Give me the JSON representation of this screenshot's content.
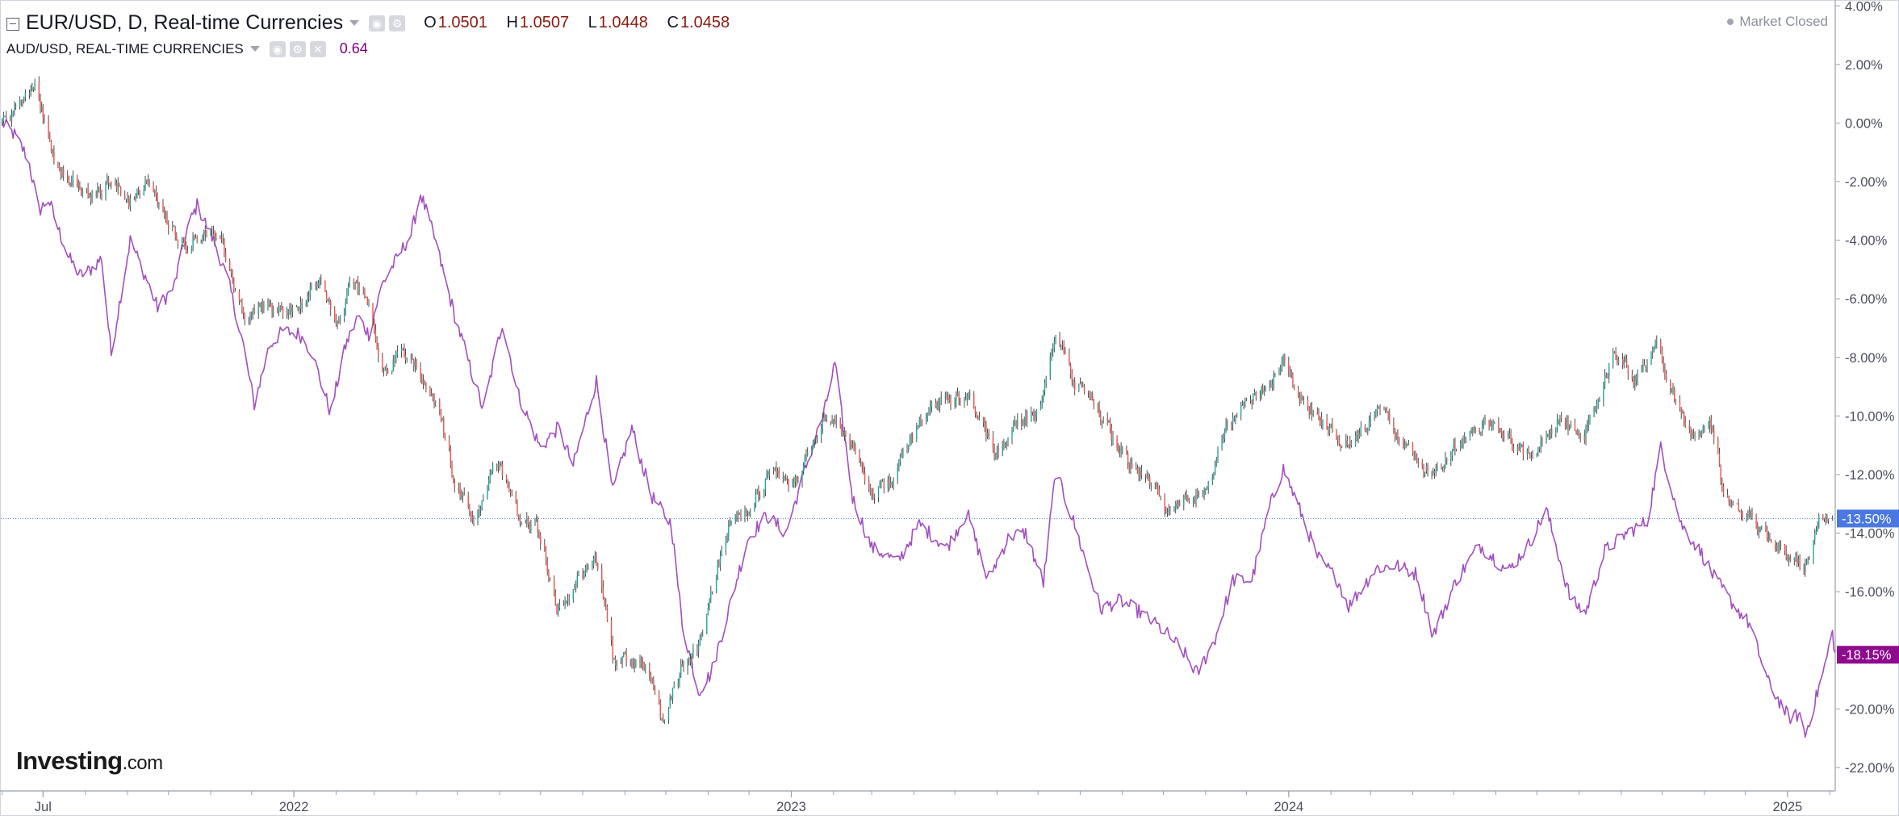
{
  "legend": {
    "main_symbol": "EUR/USD, D, Real-time Currencies",
    "ohlc": [
      {
        "key": "O",
        "value": "1.0501"
      },
      {
        "key": "H",
        "value": "1.0507"
      },
      {
        "key": "L",
        "value": "1.0448"
      },
      {
        "key": "C",
        "value": "1.0458"
      }
    ],
    "compare_symbol": "AUD/USD, REAL-TIME CURRENCIES",
    "compare_value": "0.64"
  },
  "status": {
    "market": "Market Closed"
  },
  "branding": {
    "logo_main": "Investing",
    "logo_suffix": ".com"
  },
  "chart_data": {
    "type": "line",
    "title": "EUR/USD, D, Real-time Currencies",
    "y_unit": "% change",
    "ylim": [
      -22.8,
      4.2
    ],
    "y_ticks": [
      "4.00%",
      "2.00%",
      "0.00%",
      "-2.00%",
      "-4.00%",
      "-6.00%",
      "-8.00%",
      "-10.00%",
      "-12.00%",
      "-14.00%",
      "-16.00%",
      "-18.00%",
      "-20.00%",
      "-22.00%"
    ],
    "x_labels": [
      "Jul",
      "2022",
      "2023",
      "2024",
      "2025"
    ],
    "xlim": [
      "2021-05-31",
      "2025-02-05"
    ],
    "grid": false,
    "reference_line": {
      "value": -13.5,
      "label": "-13.50%",
      "color": "#4a78e0"
    },
    "series": [
      {
        "name": "EUR/USD",
        "style": "candlestick",
        "up_color": "#26a69a",
        "down_color": "#ef5350",
        "last_label": "-13.50%",
        "label_color": "#4a78e0",
        "points": [
          [
            "2021-06-01",
            0.0
          ],
          [
            "2021-06-15",
            0.8
          ],
          [
            "2021-06-25",
            1.3
          ],
          [
            "2021-07-08",
            -1.2
          ],
          [
            "2021-07-22",
            -2.0
          ],
          [
            "2021-08-05",
            -2.6
          ],
          [
            "2021-08-20",
            -1.8
          ],
          [
            "2021-09-01",
            -2.8
          ],
          [
            "2021-09-15",
            -2.0
          ],
          [
            "2021-09-29",
            -3.4
          ],
          [
            "2021-10-14",
            -4.2
          ],
          [
            "2021-10-28",
            -3.6
          ],
          [
            "2021-11-10",
            -4.4
          ],
          [
            "2021-11-24",
            -6.6
          ],
          [
            "2021-12-08",
            -6.2
          ],
          [
            "2021-12-22",
            -6.5
          ],
          [
            "2022-01-05",
            -6.2
          ],
          [
            "2022-01-19",
            -5.4
          ],
          [
            "2022-02-02",
            -7.0
          ],
          [
            "2022-02-10",
            -5.3
          ],
          [
            "2022-02-24",
            -6.2
          ],
          [
            "2022-03-07",
            -8.5
          ],
          [
            "2022-03-21",
            -7.8
          ],
          [
            "2022-04-04",
            -8.6
          ],
          [
            "2022-04-18",
            -10.0
          ],
          [
            "2022-04-28",
            -12.3
          ],
          [
            "2022-05-12",
            -13.5
          ],
          [
            "2022-05-30",
            -11.5
          ],
          [
            "2022-06-14",
            -13.4
          ],
          [
            "2022-06-28",
            -13.8
          ],
          [
            "2022-07-12",
            -16.8
          ],
          [
            "2022-07-26",
            -15.8
          ],
          [
            "2022-08-10",
            -14.6
          ],
          [
            "2022-08-23",
            -18.4
          ],
          [
            "2022-09-06",
            -18.3
          ],
          [
            "2022-09-20",
            -18.9
          ],
          [
            "2022-09-27",
            -20.5
          ],
          [
            "2022-10-11",
            -18.6
          ],
          [
            "2022-10-25",
            -17.8
          ],
          [
            "2022-11-04",
            -15.6
          ],
          [
            "2022-11-15",
            -13.8
          ],
          [
            "2022-12-01",
            -13.2
          ],
          [
            "2022-12-15",
            -11.9
          ],
          [
            "2023-01-02",
            -12.5
          ],
          [
            "2023-01-16",
            -10.8
          ],
          [
            "2023-01-26",
            -9.8
          ],
          [
            "2023-02-15",
            -11.3
          ],
          [
            "2023-03-01",
            -12.6
          ],
          [
            "2023-03-15",
            -12.2
          ],
          [
            "2023-03-30",
            -10.6
          ],
          [
            "2023-04-14",
            -9.8
          ],
          [
            "2023-04-26",
            -9.4
          ],
          [
            "2023-05-10",
            -9.2
          ],
          [
            "2023-05-30",
            -11.3
          ],
          [
            "2023-06-14",
            -10.2
          ],
          [
            "2023-06-30",
            -9.9
          ],
          [
            "2023-07-13",
            -7.1
          ],
          [
            "2023-07-27",
            -9.0
          ],
          [
            "2023-08-10",
            -9.4
          ],
          [
            "2023-08-24",
            -10.8
          ],
          [
            "2023-09-07",
            -11.6
          ],
          [
            "2023-09-21",
            -12.3
          ],
          [
            "2023-10-03",
            -13.4
          ],
          [
            "2023-10-17",
            -12.7
          ],
          [
            "2023-11-01",
            -12.5
          ],
          [
            "2023-11-15",
            -10.4
          ],
          [
            "2023-11-29",
            -9.6
          ],
          [
            "2023-12-14",
            -9.0
          ],
          [
            "2023-12-28",
            -8.2
          ],
          [
            "2024-01-10",
            -9.5
          ],
          [
            "2024-01-24",
            -10.2
          ],
          [
            "2024-02-14",
            -11.0
          ],
          [
            "2024-03-07",
            -9.8
          ],
          [
            "2024-03-28",
            -11.2
          ],
          [
            "2024-04-16",
            -12.1
          ],
          [
            "2024-05-03",
            -10.9
          ],
          [
            "2024-05-30",
            -10.3
          ],
          [
            "2024-06-26",
            -11.5
          ],
          [
            "2024-07-17",
            -10.2
          ],
          [
            "2024-08-05",
            -10.6
          ],
          [
            "2024-08-26",
            -7.8
          ],
          [
            "2024-09-10",
            -8.8
          ],
          [
            "2024-09-26",
            -7.6
          ],
          [
            "2024-10-10",
            -9.5
          ],
          [
            "2024-10-24",
            -10.9
          ],
          [
            "2024-11-05",
            -10.0
          ],
          [
            "2024-11-13",
            -12.7
          ],
          [
            "2024-11-22",
            -13.3
          ],
          [
            "2024-12-04",
            -13.4
          ],
          [
            "2024-12-18",
            -14.4
          ],
          [
            "2025-01-02",
            -14.7
          ],
          [
            "2025-01-13",
            -15.2
          ],
          [
            "2025-01-24",
            -13.3
          ],
          [
            "2025-02-03",
            -13.5
          ]
        ]
      },
      {
        "name": "AUD/USD",
        "style": "line",
        "color": "#a14fbf",
        "last_label": "-18.15%",
        "label_color": "#8e0b8e",
        "points": [
          [
            "2021-06-01",
            0.0
          ],
          [
            "2021-06-10",
            -0.4
          ],
          [
            "2021-06-20",
            -1.2
          ],
          [
            "2021-06-28",
            -3.0
          ],
          [
            "2021-07-05",
            -2.6
          ],
          [
            "2021-07-12",
            -3.6
          ],
          [
            "2021-07-20",
            -4.6
          ],
          [
            "2021-07-28",
            -5.2
          ],
          [
            "2021-08-05",
            -5.0
          ],
          [
            "2021-08-13",
            -4.6
          ],
          [
            "2021-08-20",
            -7.9
          ],
          [
            "2021-08-28",
            -5.6
          ],
          [
            "2021-09-03",
            -4.0
          ],
          [
            "2021-09-13",
            -5.1
          ],
          [
            "2021-09-23",
            -6.3
          ],
          [
            "2021-10-05",
            -5.6
          ],
          [
            "2021-10-15",
            -3.6
          ],
          [
            "2021-10-22",
            -2.8
          ],
          [
            "2021-11-05",
            -4.2
          ],
          [
            "2021-11-15",
            -5.6
          ],
          [
            "2021-11-25",
            -7.6
          ],
          [
            "2021-12-03",
            -9.6
          ],
          [
            "2021-12-14",
            -7.6
          ],
          [
            "2021-12-24",
            -7.1
          ],
          [
            "2022-01-05",
            -7.2
          ],
          [
            "2022-01-14",
            -7.8
          ],
          [
            "2022-01-28",
            -9.9
          ],
          [
            "2022-02-08",
            -7.6
          ],
          [
            "2022-02-17",
            -6.6
          ],
          [
            "2022-02-25",
            -7.2
          ],
          [
            "2022-03-07",
            -5.5
          ],
          [
            "2022-03-18",
            -4.6
          ],
          [
            "2022-03-28",
            -3.8
          ],
          [
            "2022-04-04",
            -2.4
          ],
          [
            "2022-04-14",
            -3.9
          ],
          [
            "2022-04-28",
            -6.4
          ],
          [
            "2022-05-12",
            -8.6
          ],
          [
            "2022-05-20",
            -9.8
          ],
          [
            "2022-06-03",
            -6.8
          ],
          [
            "2022-06-15",
            -9.3
          ],
          [
            "2022-07-01",
            -11.1
          ],
          [
            "2022-07-14",
            -10.4
          ],
          [
            "2022-07-25",
            -11.7
          ],
          [
            "2022-08-11",
            -8.8
          ],
          [
            "2022-08-23",
            -12.6
          ],
          [
            "2022-09-06",
            -10.4
          ],
          [
            "2022-09-20",
            -12.7
          ],
          [
            "2022-10-05",
            -13.7
          ],
          [
            "2022-10-13",
            -17.1
          ],
          [
            "2022-10-25",
            -19.4
          ],
          [
            "2022-11-03",
            -18.8
          ],
          [
            "2022-11-15",
            -16.8
          ],
          [
            "2022-11-30",
            -14.2
          ],
          [
            "2022-12-14",
            -13.4
          ],
          [
            "2022-12-28",
            -14.0
          ],
          [
            "2023-01-12",
            -11.7
          ],
          [
            "2023-01-25",
            -9.9
          ],
          [
            "2023-02-02",
            -8.2
          ],
          [
            "2023-02-15",
            -12.8
          ],
          [
            "2023-03-01",
            -14.5
          ],
          [
            "2023-03-10",
            -14.7
          ],
          [
            "2023-03-20",
            -15.0
          ],
          [
            "2023-04-05",
            -13.7
          ],
          [
            "2023-04-25",
            -14.5
          ],
          [
            "2023-05-10",
            -13.3
          ],
          [
            "2023-05-25",
            -15.6
          ],
          [
            "2023-06-10",
            -14.1
          ],
          [
            "2023-06-22",
            -14.0
          ],
          [
            "2023-07-05",
            -15.7
          ],
          [
            "2023-07-14",
            -11.9
          ],
          [
            "2023-07-27",
            -13.6
          ],
          [
            "2023-08-16",
            -16.6
          ],
          [
            "2023-08-30",
            -16.3
          ],
          [
            "2023-09-14",
            -16.7
          ],
          [
            "2023-10-03",
            -17.4
          ],
          [
            "2023-10-15",
            -18.0
          ],
          [
            "2023-10-26",
            -18.8
          ],
          [
            "2023-11-08",
            -17.6
          ],
          [
            "2023-11-21",
            -15.6
          ],
          [
            "2023-12-05",
            -15.6
          ],
          [
            "2023-12-18",
            -13.1
          ],
          [
            "2023-12-28",
            -11.8
          ],
          [
            "2024-01-10",
            -13.3
          ],
          [
            "2024-01-22",
            -14.8
          ],
          [
            "2024-02-06",
            -15.6
          ],
          [
            "2024-02-14",
            -16.5
          ],
          [
            "2024-03-05",
            -15.2
          ],
          [
            "2024-03-20",
            -15.1
          ],
          [
            "2024-04-04",
            -15.4
          ],
          [
            "2024-04-16",
            -17.5
          ],
          [
            "2024-05-03",
            -15.6
          ],
          [
            "2024-05-20",
            -14.4
          ],
          [
            "2024-06-10",
            -15.3
          ],
          [
            "2024-06-25",
            -14.4
          ],
          [
            "2024-07-08",
            -13.2
          ],
          [
            "2024-07-26",
            -16.3
          ],
          [
            "2024-08-06",
            -16.7
          ],
          [
            "2024-08-20",
            -14.6
          ],
          [
            "2024-09-05",
            -14.0
          ],
          [
            "2024-09-20",
            -13.6
          ],
          [
            "2024-09-30",
            -11.1
          ],
          [
            "2024-10-15",
            -13.7
          ],
          [
            "2024-10-30",
            -14.7
          ],
          [
            "2024-11-08",
            -15.5
          ],
          [
            "2024-11-20",
            -16.3
          ],
          [
            "2024-12-04",
            -17.1
          ],
          [
            "2024-12-18",
            -19.1
          ],
          [
            "2025-01-02",
            -20.3
          ],
          [
            "2025-01-10",
            -20.2
          ],
          [
            "2025-01-14",
            -20.9
          ],
          [
            "2025-01-22",
            -19.6
          ],
          [
            "2025-01-28",
            -18.6
          ],
          [
            "2025-02-03",
            -17.4
          ],
          [
            "2025-02-05",
            -18.15
          ]
        ]
      }
    ]
  }
}
